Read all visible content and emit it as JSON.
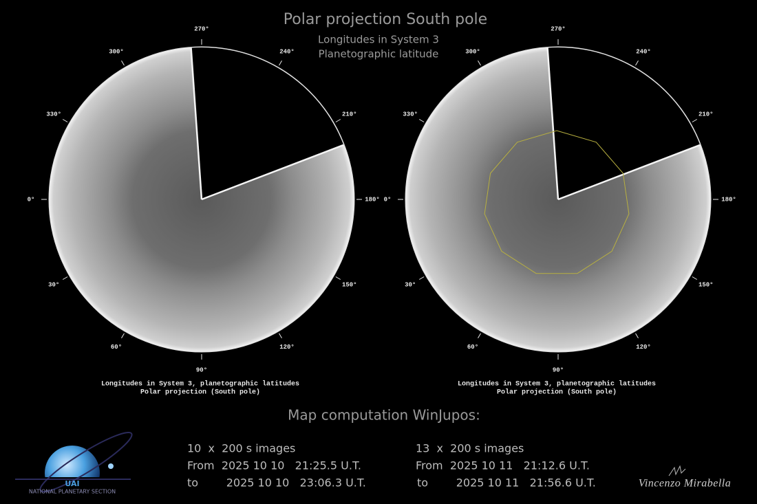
{
  "header": {
    "title": "Polar projection South pole",
    "subtitle_lines": [
      "Longitudes in System 3",
      "Planetographic latitude"
    ]
  },
  "panels": [
    {
      "longitude_labels": [
        "0°",
        "30°",
        "60°",
        "90°",
        "120°",
        "150°",
        "180°",
        "210°",
        "240°",
        "270°",
        "300°",
        "330°"
      ],
      "caption_lines": [
        "Longitudes in System 3, planetographic latitudes",
        "Polar projection (South pole)"
      ]
    },
    {
      "longitude_labels": [
        "0°",
        "30°",
        "60°",
        "90°",
        "120°",
        "150°",
        "180°",
        "210°",
        "240°",
        "270°",
        "300°",
        "330°"
      ],
      "caption_lines": [
        "Longitudes in System 3, planetographic latitudes",
        "Polar projection (South pole)"
      ]
    }
  ],
  "footer": {
    "heading": "Map computation WinJupos:",
    "observations": [
      {
        "lines": [
          "10  x  200 s images",
          "From  2025 10 10   21:25.5 U.T.",
          "to        2025 10 10   23:06.3 U.T."
        ]
      },
      {
        "lines": [
          "13  x  200 s images",
          "From  2025 10 11   21:12.6 U.T.",
          "to        2025 10 11   21:56.6 U.T."
        ]
      }
    ]
  },
  "logo": {
    "acronym": "UAI",
    "section": "NATIONAL PLANETARY SECTION"
  },
  "signature": "Vincenzo Mirabella"
}
